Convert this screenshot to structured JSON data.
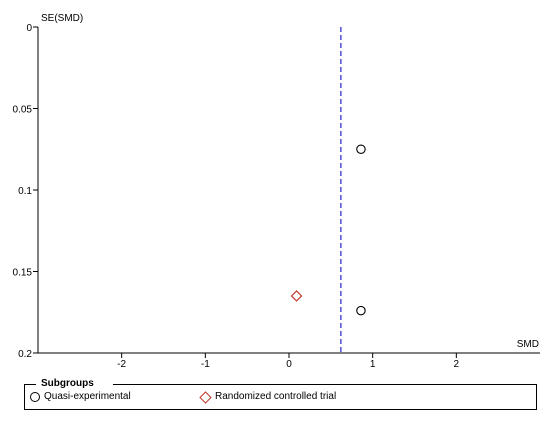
{
  "chart_data": {
    "type": "scatter",
    "ylabel": "SE(SMD)",
    "xlabel": "SMD",
    "xlim": [
      -3,
      3
    ],
    "ylim": [
      0,
      0.2
    ],
    "y_inverted": true,
    "x_ticks": [
      -2,
      -1,
      0,
      1,
      2
    ],
    "x_tick_labels": [
      "-2",
      "-1",
      "0",
      "1",
      "2"
    ],
    "y_ticks": [
      0,
      0.05,
      0.1,
      0.15,
      0.2
    ],
    "y_tick_labels": [
      "0",
      "0.05",
      "0.1",
      "0.15",
      "0.2"
    ],
    "reference_line": {
      "x": 0.62,
      "style": "dashed",
      "color": "#3333cc"
    },
    "grid": false,
    "series": [
      {
        "name": "Quasi-experimental",
        "marker": "circle",
        "color": "#000000",
        "points": [
          {
            "x": 0.86,
            "y": 0.075
          },
          {
            "x": 0.86,
            "y": 0.174
          }
        ]
      },
      {
        "name": "Randomized controlled trial",
        "marker": "diamond",
        "color": "#c0392b",
        "points": [
          {
            "x": 0.09,
            "y": 0.165
          }
        ]
      }
    ],
    "legend": {
      "title": "Subgroups",
      "placement": "bottom"
    }
  }
}
